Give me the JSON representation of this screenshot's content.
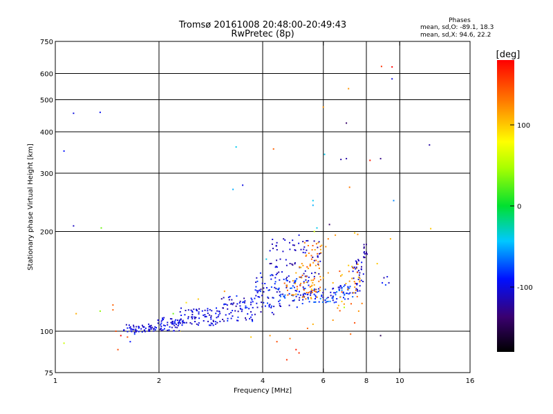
{
  "chart_data": {
    "type": "scatter",
    "title": "Tromsø 20161008 20:48:00-20:49:43",
    "subtitle": "RwPretec (8p)",
    "xlabel": "Frequency [MHz]",
    "ylabel": "Stationary phase Virtual Height [km]",
    "x_scale": "log",
    "y_scale": "log",
    "xlim": [
      1,
      16
    ],
    "ylim": [
      75,
      750
    ],
    "x_ticks": [
      1,
      2,
      4,
      6,
      8,
      10,
      16
    ],
    "y_ticks": [
      75,
      100,
      200,
      300,
      400,
      500,
      600,
      750
    ],
    "x_grid": [
      2,
      4,
      6,
      8,
      10
    ],
    "y_grid": [
      100,
      200,
      300,
      400,
      500,
      600
    ],
    "grid": true,
    "stats": {
      "heading": "Phases",
      "o_line": "mean, sd,O: -89.1, 18.3",
      "x_line": "mean, sd,X:  94.6, 22.2"
    },
    "colorbar": {
      "label": "[deg]",
      "min": -180,
      "max": 180,
      "ticks": [
        100,
        0,
        -100
      ]
    },
    "points": [
      [
        1.13,
        455,
        -100
      ],
      [
        1.35,
        458,
        -95
      ],
      [
        1.06,
        350,
        -90
      ],
      [
        1.13,
        208,
        -110
      ],
      [
        1.36,
        205,
        30
      ],
      [
        1.06,
        92,
        60
      ],
      [
        1.15,
        113,
        110
      ],
      [
        1.35,
        115,
        40
      ],
      [
        1.47,
        120,
        140
      ],
      [
        1.47,
        116,
        140
      ],
      [
        1.5,
        100,
        150
      ],
      [
        1.52,
        88,
        150
      ],
      [
        1.55,
        97,
        180
      ],
      [
        1.62,
        96,
        150
      ],
      [
        1.65,
        93,
        -90
      ],
      [
        1.7,
        98,
        -80
      ],
      [
        3.35,
        360,
        -40
      ],
      [
        3.5,
        276,
        -100
      ],
      [
        3.28,
        268,
        -50
      ],
      [
        4.3,
        355,
        140
      ],
      [
        4.1,
        165,
        -40
      ],
      [
        5.6,
        248,
        -40
      ],
      [
        5.6,
        240,
        -50
      ],
      [
        5.75,
        205,
        -40
      ],
      [
        6.25,
        210,
        -140
      ],
      [
        6.0,
        475,
        120
      ],
      [
        6.05,
        342,
        -40
      ],
      [
        7.0,
        425,
        -140
      ],
      [
        6.75,
        330,
        -120
      ],
      [
        7.0,
        332,
        -120
      ],
      [
        7.1,
        540,
        120
      ],
      [
        7.15,
        272,
        130
      ],
      [
        8.2,
        328,
        170
      ],
      [
        8.8,
        332,
        -130
      ],
      [
        8.85,
        630,
        160
      ],
      [
        9.5,
        628,
        180
      ],
      [
        9.5,
        578,
        -100
      ],
      [
        9.6,
        248,
        -60
      ],
      [
        12.2,
        365,
        -120
      ],
      [
        12.3,
        204,
        100
      ],
      [
        7.4,
        198,
        100
      ],
      [
        7.55,
        196,
        120
      ],
      [
        9.4,
        190,
        110
      ],
      [
        8.8,
        97,
        -150
      ],
      [
        4.7,
        82,
        160
      ],
      [
        5.0,
        88,
        170
      ],
      [
        5.1,
        86,
        160
      ],
      [
        4.8,
        95,
        130
      ],
      [
        4.4,
        93,
        150
      ],
      [
        5.4,
        102,
        140
      ],
      [
        5.6,
        105,
        110
      ],
      [
        7.2,
        98,
        140
      ],
      [
        7.4,
        106,
        150
      ],
      [
        7.6,
        115,
        120
      ],
      [
        6.4,
        108,
        120
      ],
      [
        6.9,
        118,
        50
      ],
      [
        3.1,
        132,
        120
      ],
      [
        2.6,
        125,
        100
      ],
      [
        2.4,
        122,
        90
      ],
      [
        3.7,
        96,
        100
      ],
      [
        4.2,
        97,
        120
      ],
      [
        2.3,
        100,
        90
      ],
      [
        2.2,
        113,
        30
      ],
      [
        8.6,
        160,
        100
      ],
      [
        9.0,
        145,
        -120
      ],
      [
        9.2,
        146,
        -100
      ],
      [
        9.1,
        138,
        -80
      ],
      [
        9.3,
        140,
        -110
      ],
      [
        8.9,
        140,
        -90
      ],
      [
        5.3,
        185,
        130
      ],
      [
        5.45,
        172,
        130
      ],
      [
        5.55,
        165,
        140
      ],
      [
        5.2,
        160,
        120
      ],
      [
        5.0,
        150,
        110
      ],
      [
        4.9,
        142,
        120
      ],
      [
        5.7,
        150,
        100
      ],
      [
        5.8,
        162,
        130
      ],
      [
        6.0,
        145,
        110
      ],
      [
        6.2,
        150,
        120
      ],
      [
        6.4,
        140,
        110
      ],
      [
        6.8,
        148,
        100
      ],
      [
        7.1,
        158,
        100
      ],
      [
        7.5,
        155,
        110
      ],
      [
        6.5,
        195,
        120
      ],
      [
        6.2,
        190,
        130
      ],
      [
        6.1,
        180,
        120
      ],
      [
        5.8,
        185,
        110
      ],
      [
        5.65,
        200,
        60
      ],
      [
        4.6,
        190,
        -120
      ],
      [
        4.4,
        185,
        -110
      ],
      [
        4.2,
        175,
        -100
      ],
      [
        4.5,
        165,
        -110
      ],
      [
        5.1,
        195,
        -100
      ],
      [
        4.9,
        182,
        -110
      ],
      [
        4.7,
        158,
        -110
      ],
      [
        4.2,
        160,
        -120
      ]
    ],
    "trace_groups": [
      {
        "x_range": [
          1.58,
          1.95
        ],
        "y_range": [
          99,
          105
        ],
        "n": 55,
        "c_range": [
          -120,
          -90
        ]
      },
      {
        "x_range": [
          1.95,
          2.3
        ],
        "y_range": [
          100,
          110
        ],
        "n": 55,
        "c_range": [
          -120,
          -85
        ]
      },
      {
        "x_range": [
          2.3,
          3.0
        ],
        "y_range": [
          104,
          118
        ],
        "n": 80,
        "c_range": [
          -120,
          -85
        ]
      },
      {
        "x_range": [
          3.0,
          3.8
        ],
        "y_range": [
          107,
          128
        ],
        "n": 70,
        "c_range": [
          -125,
          -80
        ]
      },
      {
        "x_range": [
          3.8,
          4.4
        ],
        "y_range": [
          112,
          150
        ],
        "n": 55,
        "c_range": [
          -120,
          -75
        ]
      },
      {
        "x_range": [
          4.4,
          5.5
        ],
        "y_range": [
          118,
          145
        ],
        "n": 75,
        "c_range": [
          -120,
          -60
        ]
      },
      {
        "x_range": [
          5.5,
          6.6
        ],
        "y_range": [
          122,
          135
        ],
        "n": 50,
        "c_range": [
          -120,
          -60
        ]
      },
      {
        "x_range": [
          6.6,
          7.3
        ],
        "y_range": [
          125,
          138
        ],
        "n": 30,
        "c_range": [
          -110,
          -60
        ]
      },
      {
        "x_range": [
          7.3,
          7.85
        ],
        "y_range": [
          130,
          165
        ],
        "n": 35,
        "c_range": [
          -125,
          -90
        ]
      },
      {
        "x_range": [
          7.85,
          8.05
        ],
        "y_range": [
          165,
          185
        ],
        "n": 15,
        "c_range": [
          -130,
          -110
        ]
      },
      {
        "x_range": [
          4.2,
          5.9
        ],
        "y_range": [
          145,
          190
        ],
        "n": 65,
        "c_range": [
          -125,
          -95
        ]
      },
      {
        "x_range": [
          5.1,
          6.0
        ],
        "y_range": [
          132,
          185
        ],
        "n": 45,
        "c_range": [
          100,
          150
        ]
      },
      {
        "x_range": [
          6.6,
          7.8
        ],
        "y_range": [
          112,
          160
        ],
        "n": 30,
        "c_range": [
          100,
          150
        ]
      },
      {
        "x_range": [
          4.6,
          5.9
        ],
        "y_range": [
          125,
          140
        ],
        "n": 30,
        "c_range": [
          110,
          150
        ]
      }
    ]
  }
}
